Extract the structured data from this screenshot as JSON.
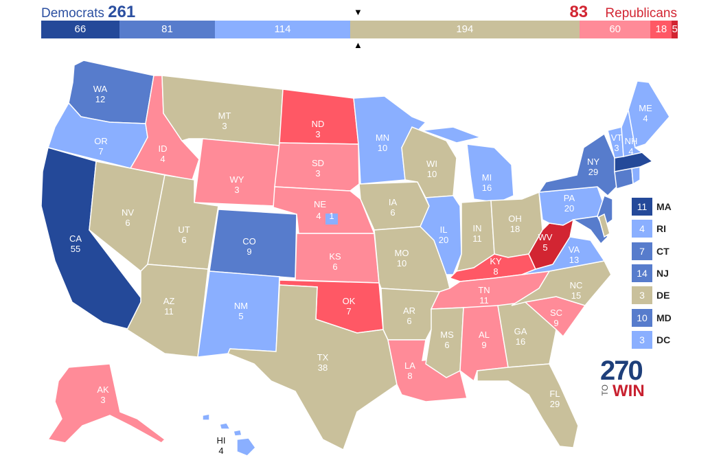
{
  "header": {
    "dem_label": "Democrats",
    "dem_total": "261",
    "rep_total": "83",
    "rep_label": "Republicans"
  },
  "bar_segments": [
    {
      "value": "66",
      "color": "#244999"
    },
    {
      "value": "81",
      "color": "#577ccc"
    },
    {
      "value": "114",
      "color": "#8aafff"
    },
    {
      "value": "194",
      "color": "#c9c09b"
    },
    {
      "value": "60",
      "color": "#ff8b98"
    },
    {
      "value": "18",
      "color": "#ff5865"
    },
    {
      "value": "5",
      "color": "#d22532"
    }
  ],
  "colors": {
    "safe_d": "#244999",
    "likely_d": "#577ccc",
    "lean_d": "#8aafff",
    "tossup": "#c9c09b",
    "lean_r": "#ff8b98",
    "likely_r": "#ff5865",
    "safe_r": "#d22532"
  },
  "states": [
    {
      "abbr": "WA",
      "ev": "12",
      "rating": "likely_d"
    },
    {
      "abbr": "OR",
      "ev": "7",
      "rating": "lean_d"
    },
    {
      "abbr": "CA",
      "ev": "55",
      "rating": "safe_d"
    },
    {
      "abbr": "ID",
      "ev": "4",
      "rating": "lean_r"
    },
    {
      "abbr": "NV",
      "ev": "6",
      "rating": "tossup"
    },
    {
      "abbr": "MT",
      "ev": "3",
      "rating": "tossup"
    },
    {
      "abbr": "WY",
      "ev": "3",
      "rating": "lean_r"
    },
    {
      "abbr": "UT",
      "ev": "6",
      "rating": "tossup"
    },
    {
      "abbr": "AZ",
      "ev": "11",
      "rating": "tossup"
    },
    {
      "abbr": "CO",
      "ev": "9",
      "rating": "likely_d"
    },
    {
      "abbr": "NM",
      "ev": "5",
      "rating": "lean_d"
    },
    {
      "abbr": "ND",
      "ev": "3",
      "rating": "likely_r"
    },
    {
      "abbr": "SD",
      "ev": "3",
      "rating": "lean_r"
    },
    {
      "abbr": "NE",
      "ev": "4",
      "rating": "lean_r"
    },
    {
      "abbr": "KS",
      "ev": "6",
      "rating": "lean_r"
    },
    {
      "abbr": "OK",
      "ev": "7",
      "rating": "likely_r"
    },
    {
      "abbr": "TX",
      "ev": "38",
      "rating": "tossup"
    },
    {
      "abbr": "MN",
      "ev": "10",
      "rating": "lean_d"
    },
    {
      "abbr": "IA",
      "ev": "6",
      "rating": "tossup"
    },
    {
      "abbr": "MO",
      "ev": "10",
      "rating": "tossup"
    },
    {
      "abbr": "AR",
      "ev": "6",
      "rating": "tossup"
    },
    {
      "abbr": "LA",
      "ev": "8",
      "rating": "lean_r"
    },
    {
      "abbr": "WI",
      "ev": "10",
      "rating": "tossup"
    },
    {
      "abbr": "IL",
      "ev": "20",
      "rating": "lean_d"
    },
    {
      "abbr": "MI",
      "ev": "16",
      "rating": "lean_d"
    },
    {
      "abbr": "IN",
      "ev": "11",
      "rating": "tossup"
    },
    {
      "abbr": "OH",
      "ev": "18",
      "rating": "tossup"
    },
    {
      "abbr": "KY",
      "ev": "8",
      "rating": "likely_r"
    },
    {
      "abbr": "TN",
      "ev": "11",
      "rating": "lean_r"
    },
    {
      "abbr": "MS",
      "ev": "6",
      "rating": "tossup"
    },
    {
      "abbr": "AL",
      "ev": "9",
      "rating": "lean_r"
    },
    {
      "abbr": "GA",
      "ev": "16",
      "rating": "tossup"
    },
    {
      "abbr": "FL",
      "ev": "29",
      "rating": "tossup"
    },
    {
      "abbr": "SC",
      "ev": "9",
      "rating": "lean_r"
    },
    {
      "abbr": "NC",
      "ev": "15",
      "rating": "tossup"
    },
    {
      "abbr": "VA",
      "ev": "13",
      "rating": "lean_d"
    },
    {
      "abbr": "WV",
      "ev": "5",
      "rating": "safe_r"
    },
    {
      "abbr": "PA",
      "ev": "20",
      "rating": "lean_d"
    },
    {
      "abbr": "NY",
      "ev": "29",
      "rating": "likely_d"
    },
    {
      "abbr": "VT",
      "ev": "3",
      "rating": "lean_d"
    },
    {
      "abbr": "NH",
      "ev": "4",
      "rating": "lean_d"
    },
    {
      "abbr": "ME",
      "ev": "4",
      "rating": "lean_d"
    },
    {
      "abbr": "AK",
      "ev": "3",
      "rating": "lean_r"
    },
    {
      "abbr": "HI",
      "ev": "4",
      "rating": "lean_d"
    },
    {
      "abbr": "NE2",
      "ev": "1",
      "rating": "lean_d"
    }
  ],
  "legend": [
    {
      "ev": "11",
      "abbr": "MA",
      "rating": "safe_d"
    },
    {
      "ev": "4",
      "abbr": "RI",
      "rating": "lean_d"
    },
    {
      "ev": "7",
      "abbr": "CT",
      "rating": "likely_d"
    },
    {
      "ev": "14",
      "abbr": "NJ",
      "rating": "likely_d"
    },
    {
      "ev": "3",
      "abbr": "DE",
      "rating": "tossup"
    },
    {
      "ev": "10",
      "abbr": "MD",
      "rating": "likely_d"
    },
    {
      "ev": "3",
      "abbr": "DC",
      "rating": "lean_d"
    }
  ],
  "logo": {
    "num": "270",
    "to": "TO",
    "win": "WIN"
  }
}
